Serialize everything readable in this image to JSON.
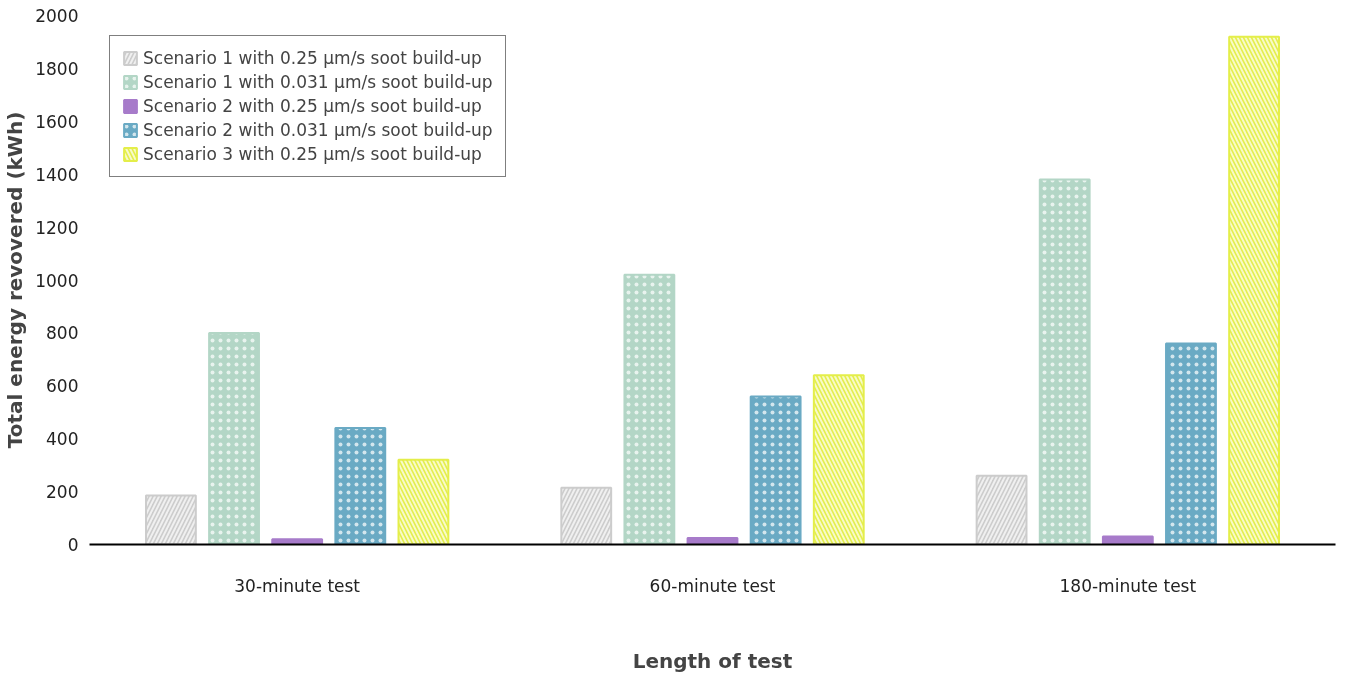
{
  "chart_data": {
    "type": "bar",
    "xlabel": "Length of test",
    "ylabel": "Total energy revovered (kWh)",
    "categories": [
      "30-minute test",
      "60-minute test",
      "180-minute test"
    ],
    "series": [
      {
        "name": "Scenario 1 with 0.25 µm/s soot build-up",
        "color": "#cccccc",
        "values": [
          185,
          215,
          260
        ]
      },
      {
        "name": "Scenario 1 with 0.031 µm/s soot build-up",
        "color": "#b3d6c6",
        "values": [
          800,
          1020,
          1380
        ]
      },
      {
        "name": "Scenario 2 with 0.25 µm/s soot build-up",
        "color": "#a77bca",
        "values": [
          20,
          25,
          30
        ]
      },
      {
        "name": "Scenario 2 with 0.031 µm/s soot build-up",
        "color": "#6aaac4",
        "values": [
          440,
          560,
          760
        ]
      },
      {
        "name": "Scenario 3 with 0.25 µm/s soot build-up",
        "color": "#e4ee4a",
        "values": [
          320,
          640,
          1920
        ]
      }
    ],
    "ylim": [
      0,
      2000
    ],
    "yticks": [
      0,
      200,
      400,
      600,
      800,
      1000,
      1200,
      1400,
      1600,
      1800,
      2000
    ],
    "grid": false,
    "legend": "top left"
  }
}
